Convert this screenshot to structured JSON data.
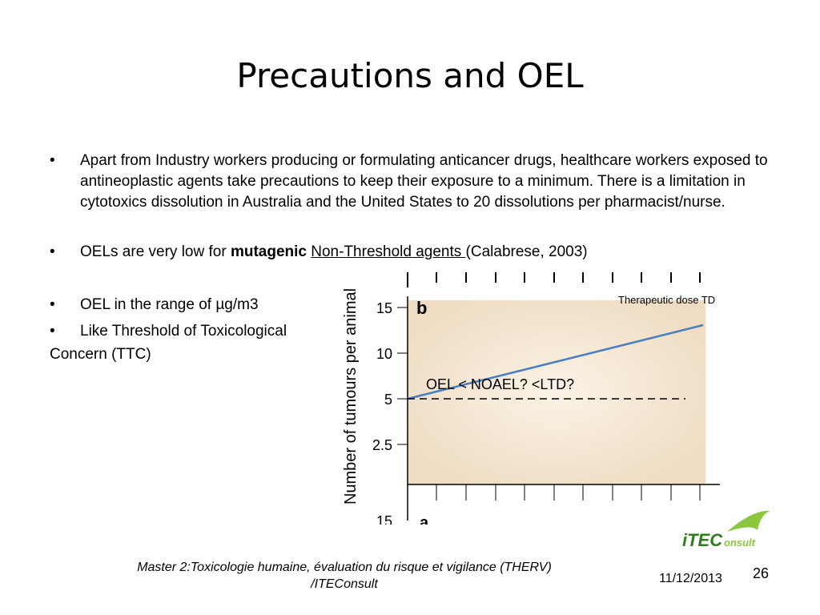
{
  "slide": {
    "title": "Precautions and OEL",
    "bullets": [
      "Apart from Industry workers producing or formulating anticancer drugs, healthcare workers exposed to antineoplastic agents take precautions to keep their exposure to a minimum. There is a limitation in cytotoxics dissolution in Australia and the United States to 20 dissolutions per pharmacist/nurse.",
      {
        "pre": "OELs are very low for ",
        "bold": "mutagenic",
        "space": " ",
        "link": "Non-Threshold agents ",
        "post": "(Calabrese, 2003)"
      },
      "OEL in the range of µg/m3",
      "Like Threshold of Toxicological"
    ],
    "continuation": "Concern (TTC)",
    "bullet_symbol": "•"
  },
  "chart_data": {
    "type": "line",
    "panel_label": "b",
    "ylabel": "Number of tumours per animal",
    "yticks": [
      "15",
      "10",
      "5",
      "2.5"
    ],
    "cut_tick": "15",
    "cut_panel": "a",
    "series_label": "Therapeutic dose TD",
    "annotation": "OEL < NOAEL? <LTD?",
    "line_color": "#4a7fc0",
    "dash_color": "#000000"
  },
  "footer": {
    "line1": "Master 2:Toxicologie humaine, évaluation du risque et vigilance (THERV)",
    "line2": "/ITEConsult",
    "date": "11/12/2013",
    "page": "26"
  },
  "logo": {
    "text1": "iTEC",
    "text2": "onsult",
    "color_main": "#2e7d1f",
    "color_accent": "#8cc63f"
  }
}
